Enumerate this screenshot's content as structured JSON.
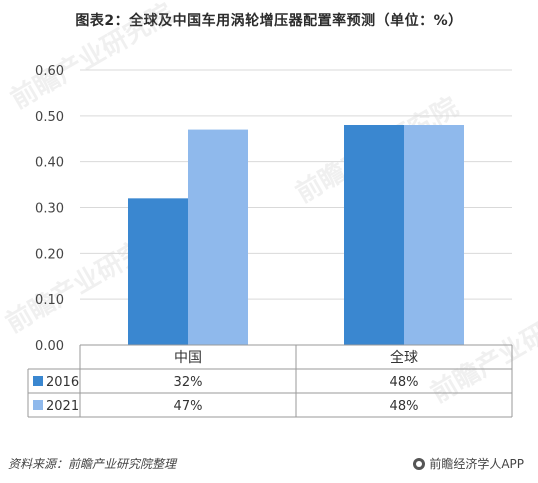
{
  "title": "图表2：全球及中国车用涡轮增压器配置率预测（单位：%）",
  "source": "资料来源：前瞻产业研究院整理",
  "brand": "前瞻经济学人APP",
  "watermark": "前瞻产业研究院",
  "colors": {
    "series_2016": "#3a87d0",
    "series_2021": "#8fb9ec",
    "grid": "#d9d9d9",
    "axis": "#9a9a9a"
  },
  "chart_data": {
    "type": "bar",
    "categories": [
      "中国",
      "全球"
    ],
    "series": [
      {
        "name": "2016",
        "values": [
          0.32,
          0.48
        ],
        "labels": [
          "32%",
          "48%"
        ]
      },
      {
        "name": "2021",
        "values": [
          0.47,
          0.48
        ],
        "labels": [
          "47%",
          "48%"
        ]
      }
    ],
    "ylim": [
      0,
      0.6
    ],
    "yticks": [
      "0.00",
      "0.10",
      "0.20",
      "0.30",
      "0.40",
      "0.50",
      "0.60"
    ],
    "grid": true,
    "legend": "data-table"
  }
}
